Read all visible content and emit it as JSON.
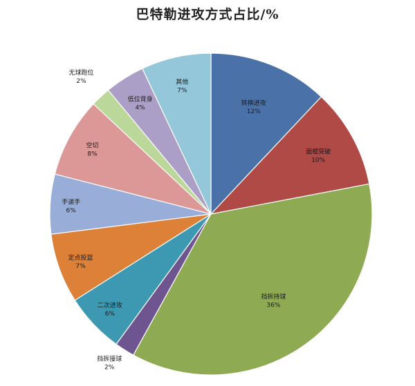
{
  "chart_data": {
    "type": "pie",
    "title": "巴特勒进攻方式占比/%",
    "slices": [
      {
        "name": "转换进攻",
        "value": 12,
        "label": "12%",
        "color": "#4a72a8"
      },
      {
        "name": "面框突破",
        "value": 10,
        "label": "10%",
        "color": "#b04a46"
      },
      {
        "name": "挡拆持球",
        "value": 36,
        "label": "36%",
        "color": "#8eaa52"
      },
      {
        "name": "挡拆接球",
        "value": 2,
        "label": "2%",
        "color": "#6e5590"
      },
      {
        "name": "二次进攻",
        "value": 6,
        "label": "6%",
        "color": "#3d99b2"
      },
      {
        "name": "定点投篮",
        "value": 7,
        "label": "7%",
        "color": "#dd8139"
      },
      {
        "name": "手递手",
        "value": 6,
        "label": "6%",
        "color": "#98aed8"
      },
      {
        "name": "空切",
        "value": 8,
        "label": "8%",
        "color": "#dc9896"
      },
      {
        "name": "无球跑位",
        "value": 2,
        "label": "2%",
        "color": "#bcd79a"
      },
      {
        "name": "低位背身",
        "value": 4,
        "label": "4%",
        "color": "#ac9fc7"
      },
      {
        "name": "其他",
        "value": 7,
        "label": "7%",
        "color": "#93c7d9"
      }
    ]
  }
}
